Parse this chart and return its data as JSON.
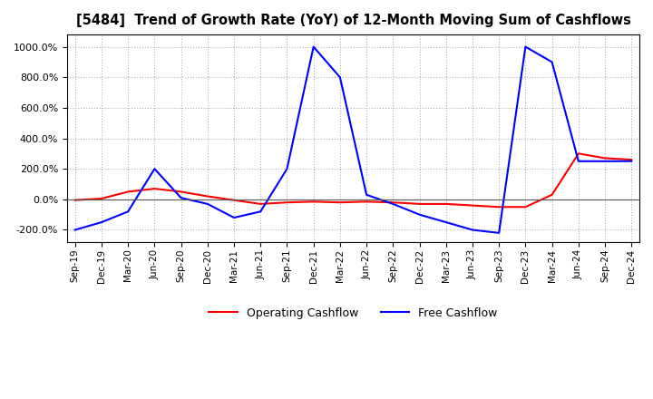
{
  "title": "[5484]  Trend of Growth Rate (YoY) of 12-Month Moving Sum of Cashflows",
  "title_fontsize": 10.5,
  "background_color": "#ffffff",
  "grid_color": "#aaaaaa",
  "ylim": [
    -280,
    1080
  ],
  "yticks": [
    -200,
    0,
    200,
    400,
    600,
    800,
    1000
  ],
  "legend_labels": [
    "Operating Cashflow",
    "Free Cashflow"
  ],
  "legend_colors": [
    "#ff0000",
    "#0000ff"
  ],
  "x_labels": [
    "Sep-19",
    "Dec-19",
    "Mar-20",
    "Jun-20",
    "Sep-20",
    "Dec-20",
    "Mar-21",
    "Jun-21",
    "Sep-21",
    "Dec-21",
    "Mar-22",
    "Jun-22",
    "Sep-22",
    "Dec-22",
    "Mar-23",
    "Jun-23",
    "Sep-23",
    "Dec-23",
    "Mar-24",
    "Jun-24",
    "Sep-24",
    "Dec-24"
  ],
  "operating_cashflow": [
    -5,
    5,
    50,
    70,
    50,
    20,
    -5,
    -30,
    -20,
    -15,
    -20,
    -15,
    -20,
    -30,
    -30,
    -40,
    -50,
    -50,
    30,
    300,
    270,
    260
  ],
  "free_cashflow": [
    -200,
    -150,
    -80,
    200,
    10,
    -30,
    -120,
    -80,
    200,
    1000,
    800,
    30,
    -30,
    -100,
    -150,
    -200,
    -220,
    1000,
    900,
    250,
    250,
    250
  ]
}
